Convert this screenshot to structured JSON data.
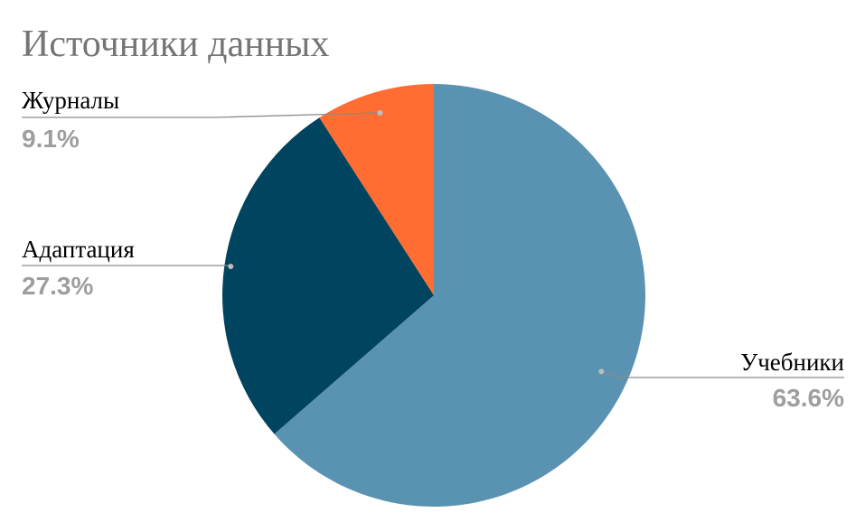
{
  "chart_data": {
    "type": "pie",
    "title": "Источники данных",
    "categories": [
      "Учебники",
      "Адаптация",
      "Журналы"
    ],
    "values": [
      63.6,
      27.3,
      9.1
    ],
    "labels": [
      "63.6%",
      "27.3%",
      "9.1%"
    ],
    "colors": [
      "#5a93b1",
      "#00445f",
      "#ff6d33"
    ],
    "legend": "none",
    "start_angle": "12 o'clock, clockwise"
  },
  "colors": {
    "title": "#757575",
    "percent_label": "#9e9e9e",
    "leader_line": "#8a8a8a"
  }
}
